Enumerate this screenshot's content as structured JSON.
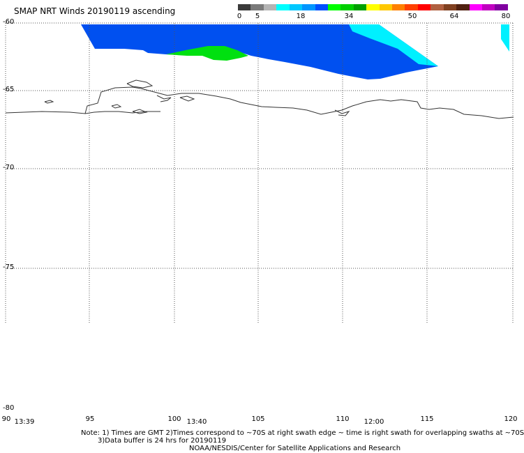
{
  "title": "SMAP NRT Winds 20190119 ascending",
  "colorbar": {
    "ticks": [
      "0",
      "5",
      "18",
      "34",
      "50",
      "64",
      "80"
    ],
    "colors": [
      "#3a3a3a",
      "#7a7a7a",
      "#b4b4b4",
      "#00ffff",
      "#00c8ff",
      "#0096ff",
      "#0050ff",
      "#00ff00",
      "#00d000",
      "#00a000",
      "#ffff00",
      "#ffc800",
      "#ff8000",
      "#ff4000",
      "#ff0000",
      "#b06040",
      "#804020",
      "#502010",
      "#ff00ff",
      "#c000c0",
      "#8000a0"
    ]
  },
  "lat_labels": [
    "-60",
    "-65",
    "-70",
    "-75",
    "-80"
  ],
  "lon_labels": [
    "90",
    "95",
    "100",
    "105",
    "110",
    "115",
    "120"
  ],
  "time_labels": [
    "13:39",
    "13:40",
    "12:00"
  ],
  "swath_colors": {
    "blue": "#0050f0",
    "cyan": "#00f0ff",
    "green": "#00e010",
    "coast": "#333333"
  },
  "footer": {
    "note1": "Note: 1) Times are GMT 2)Times correspond to ~70S at right swath edge ~ time is right swath for overlapping swaths at ~70S",
    "note2": "3)Data buffer is 24 hrs for 20190119",
    "credit": "NOAA/NESDIS/Center for Satellite Applications and Research"
  }
}
